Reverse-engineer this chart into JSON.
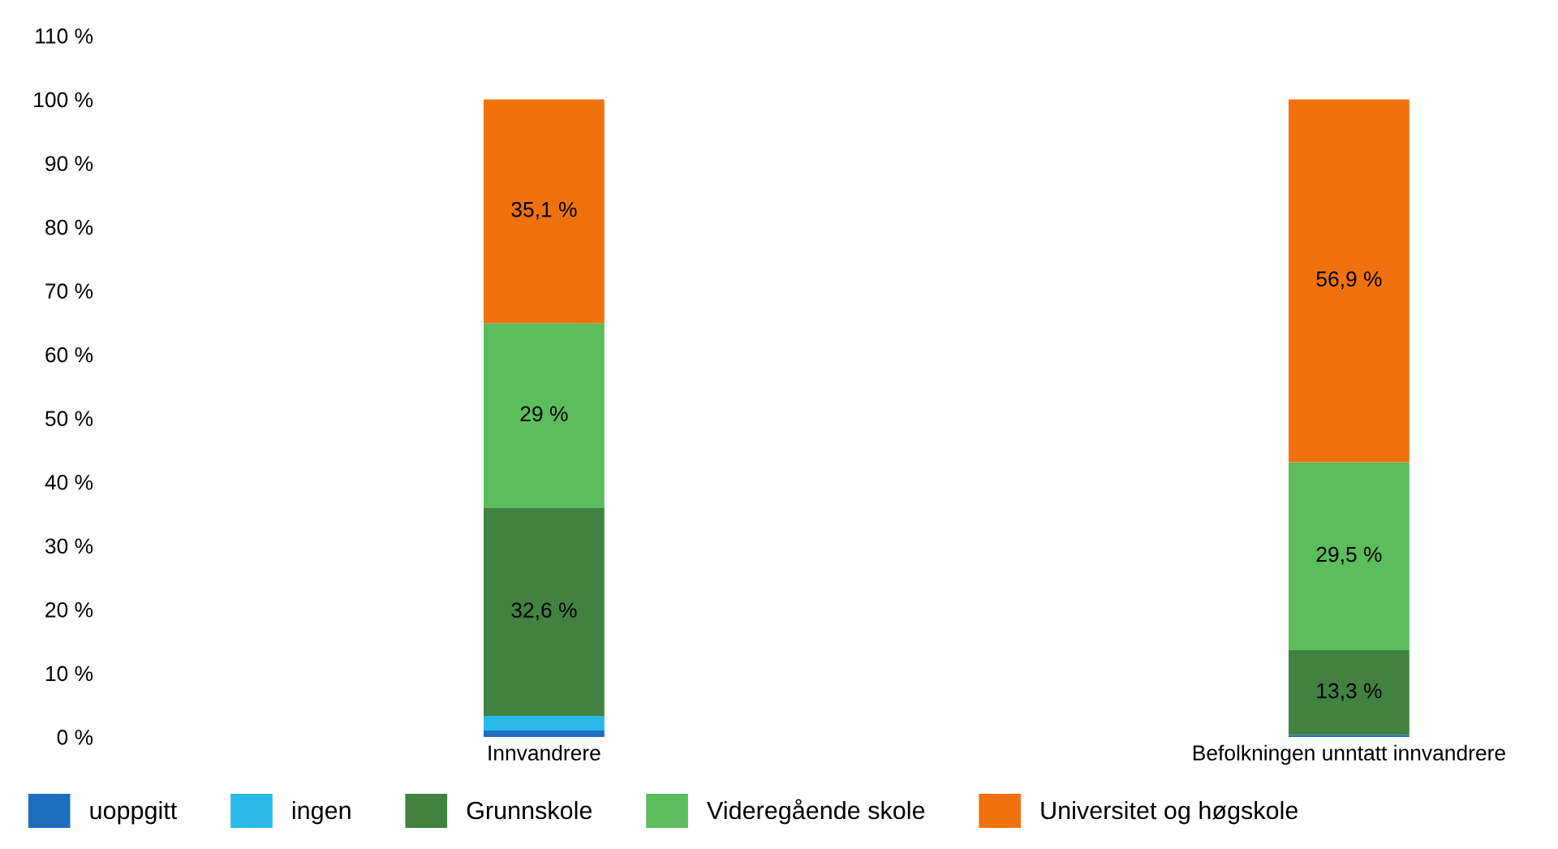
{
  "chart_data": {
    "type": "bar",
    "stacked": true,
    "categories": [
      "Innvandrere",
      "Befolkningen unntatt innvandrere"
    ],
    "series": [
      {
        "name": "uoppgitt",
        "color": "#1f6fc0",
        "values": [
          1.0,
          0.3
        ]
      },
      {
        "name": "ingen",
        "color": "#29b9e8",
        "values": [
          2.3,
          0
        ]
      },
      {
        "name": "Grunnskole",
        "color": "#418241",
        "values": [
          32.6,
          13.3
        ],
        "value_labels": [
          "32,6 %",
          "13,3 %"
        ]
      },
      {
        "name": "Videregående skole",
        "color": "#5cbd5c",
        "values": [
          29,
          29.5
        ],
        "value_labels": [
          "29 %",
          "29,5 %"
        ]
      },
      {
        "name": "Universitet og høgskole",
        "color": "#f0720f",
        "values": [
          35.1,
          56.9
        ],
        "value_labels": [
          "35,1 %",
          "56,9 %"
        ]
      }
    ],
    "ylim": [
      0,
      110
    ],
    "yticks": [
      {
        "value": 0,
        "label": "0 %"
      },
      {
        "value": 10,
        "label": "10 %"
      },
      {
        "value": 20,
        "label": "20 %"
      },
      {
        "value": 30,
        "label": "30 %"
      },
      {
        "value": 40,
        "label": "40 %"
      },
      {
        "value": 50,
        "label": "50 %"
      },
      {
        "value": 60,
        "label": "60 %"
      },
      {
        "value": 70,
        "label": "70 %"
      },
      {
        "value": 80,
        "label": "80 %"
      },
      {
        "value": 90,
        "label": "90 %"
      },
      {
        "value": 100,
        "label": "100 %"
      },
      {
        "value": 110,
        "label": "110 %"
      }
    ],
    "grid": false,
    "legend": "bottom"
  }
}
